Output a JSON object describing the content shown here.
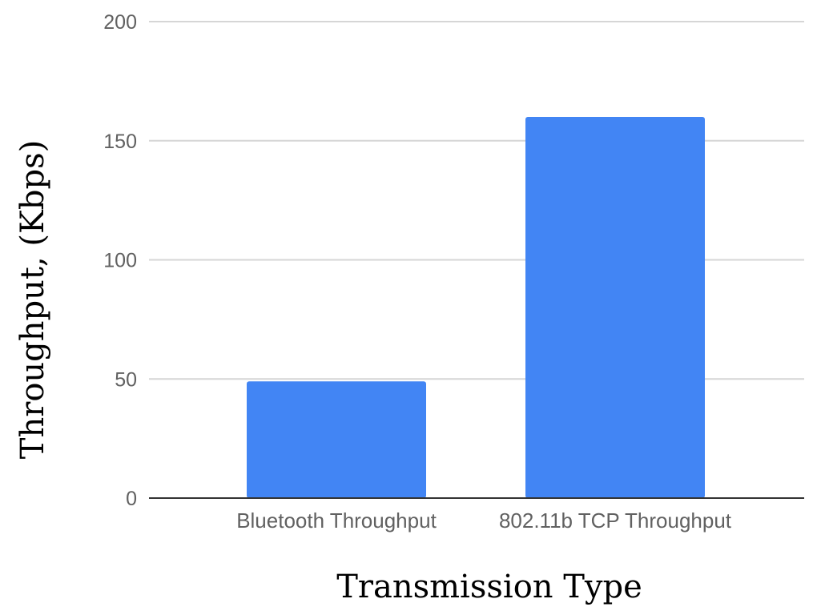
{
  "chart_data": {
    "type": "bar",
    "categories": [
      "Bluetooth Throughput",
      "802.11b TCP Throughput"
    ],
    "values": [
      49,
      160
    ],
    "xlabel": "Transmission Type",
    "ylabel": "Throughput, (Kbps)",
    "ylim": [
      0,
      200
    ],
    "yticks": [
      0,
      50,
      100,
      150,
      200
    ],
    "grid": true,
    "legend": "none",
    "colors": {
      "bar": "#4285F4",
      "grid": "#d6d6d6",
      "baseline": "#333333",
      "tick_label": "#616161"
    }
  }
}
